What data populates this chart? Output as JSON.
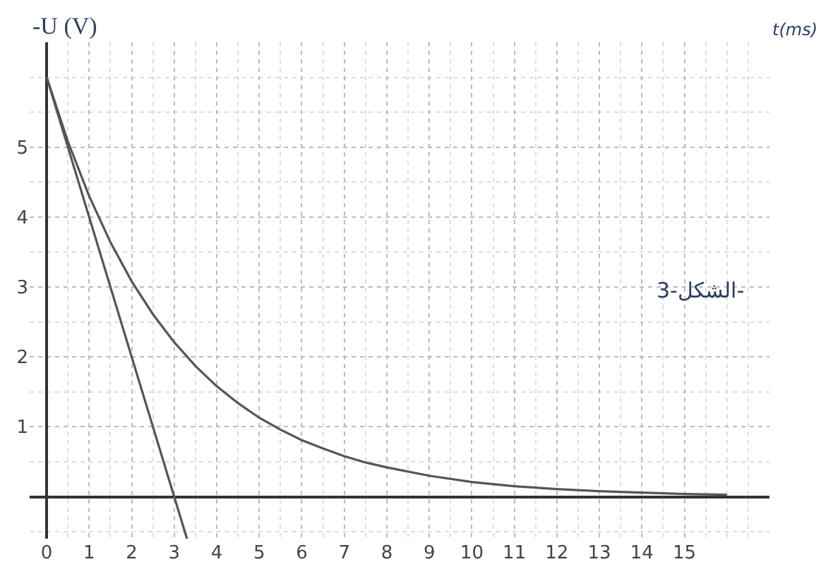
{
  "chart_data": {
    "type": "line",
    "xlabel": "t(ms)",
    "ylabel": "-U (V)",
    "annotations": [
      "الشكل-3-"
    ],
    "xlim": [
      -0.4,
      17
    ],
    "ylim": [
      -0.6,
      6.5
    ],
    "xticks": [
      0,
      1,
      2,
      3,
      4,
      5,
      6,
      7,
      8,
      9,
      10,
      11,
      12,
      13,
      14,
      15
    ],
    "yticks": [
      1,
      2,
      3,
      4,
      5
    ],
    "grid": true,
    "marker": "none",
    "line_style": "solid",
    "series": [
      {
        "color": "#555555",
        "x": [
          0,
          0.5,
          1,
          1.5,
          2,
          2.5,
          3,
          3.5,
          4,
          4.5,
          5,
          5.5,
          6,
          6.5,
          7,
          7.5,
          8,
          9,
          10,
          11,
          12,
          13,
          14,
          15,
          16
        ],
        "values": [
          6,
          5.08,
          4.3,
          3.64,
          3.08,
          2.61,
          2.21,
          1.87,
          1.58,
          1.34,
          1.13,
          0.96,
          0.81,
          0.69,
          0.58,
          0.49,
          0.42,
          0.3,
          0.21,
          0.15,
          0.11,
          0.08,
          0.06,
          0.04,
          0.03
        ]
      },
      {
        "color": "#555555",
        "x": [
          0,
          3,
          3.3
        ],
        "values": [
          6,
          0,
          -0.6
        ]
      }
    ]
  }
}
